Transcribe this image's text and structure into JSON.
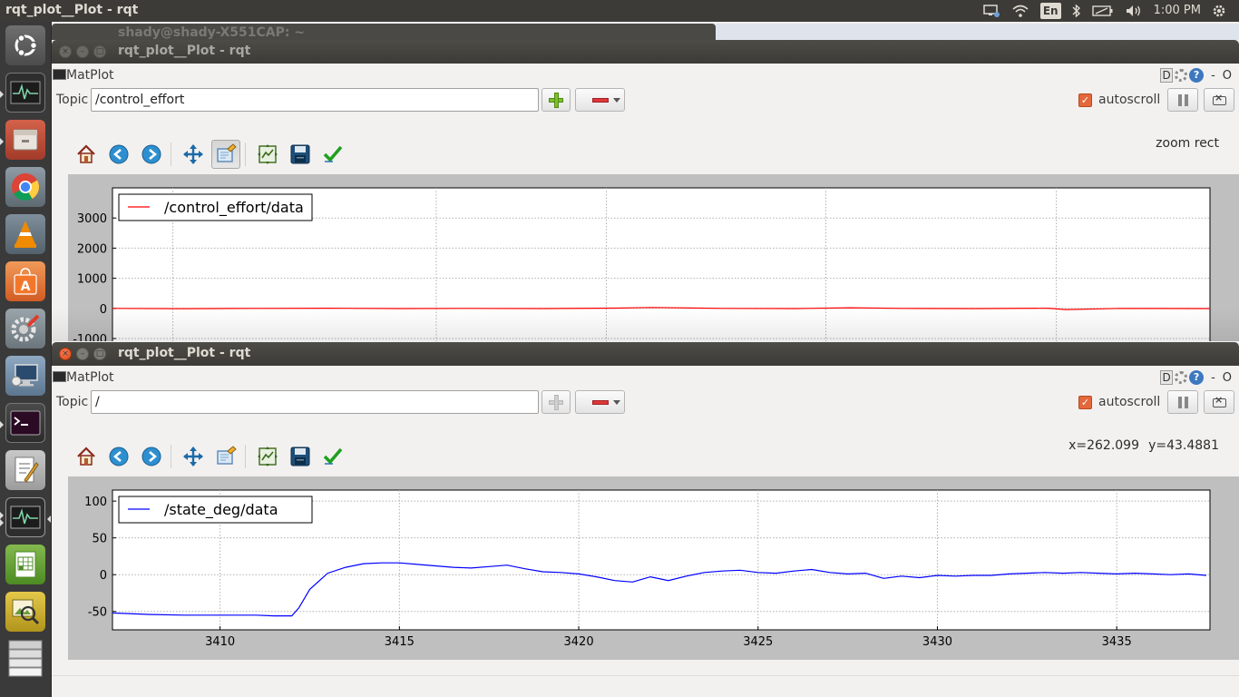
{
  "top_panel": {
    "app_title": "rqt_plot__Plot - rqt",
    "keyboard_layout": "En",
    "clock": "1:00 PM"
  },
  "background_window": {
    "title": "shady@shady-X551CAP: ~"
  },
  "window_top": {
    "title": "rqt_plot__Plot - rqt",
    "plugin_label": "MatPlot",
    "plugin_controls": {
      "d_label": "D",
      "help_label": "?",
      "minus_label": "-",
      "close_label": "O"
    },
    "topic_label": "Topic",
    "topic_value": "/control_effort",
    "add_enabled": true,
    "autoscroll_label": "autoscroll",
    "autoscroll_checked": true,
    "readout": "zoom rect",
    "zoom_pressed": true,
    "chart_data": {
      "type": "line",
      "x": [
        3407.0,
        3409.0,
        3411.0,
        3413.0,
        3415.0,
        3417.0,
        3419.0,
        3421.0,
        3422.0,
        3424.0,
        3426.0,
        3427.5,
        3429.0,
        3431.0,
        3433.0,
        3433.5,
        3435.0,
        3437.5
      ],
      "series": [
        {
          "name": "/control_effort/data",
          "color": "#ff0000",
          "values": [
            0,
            -10,
            0,
            5,
            -5,
            0,
            -5,
            10,
            30,
            0,
            -5,
            20,
            0,
            -5,
            5,
            -40,
            0,
            -5
          ]
        }
      ],
      "yticks": [
        "3000",
        "2000",
        "1000",
        "0",
        "-1000"
      ],
      "ylim": [
        -1000,
        4000
      ],
      "grid": true,
      "legend_position": "upper-left"
    }
  },
  "window_bottom": {
    "title": "rqt_plot__Plot - rqt",
    "plugin_label": "MatPlot",
    "plugin_controls": {
      "d_label": "D",
      "help_label": "?",
      "minus_label": "-",
      "close_label": "O"
    },
    "topic_label": "Topic",
    "topic_value": "/",
    "add_enabled": false,
    "autoscroll_label": "autoscroll",
    "autoscroll_checked": true,
    "readout_x": "x=262.099",
    "readout_y": "y=43.4881",
    "zoom_pressed": false,
    "chart_data": {
      "type": "line",
      "x": [
        3407.0,
        3408.0,
        3409.0,
        3410.0,
        3411.0,
        3411.5,
        3412.0,
        3412.2,
        3412.5,
        3413.0,
        3413.5,
        3414.0,
        3414.5,
        3415.0,
        3415.5,
        3416.0,
        3416.5,
        3417.0,
        3417.5,
        3418.0,
        3418.5,
        3419.0,
        3419.5,
        3420.0,
        3420.5,
        3421.0,
        3421.5,
        3422.0,
        3422.5,
        3423.0,
        3423.5,
        3424.0,
        3424.5,
        3425.0,
        3425.5,
        3426.0,
        3426.5,
        3427.0,
        3427.5,
        3428.0,
        3428.5,
        3429.0,
        3429.5,
        3430.0,
        3430.5,
        3431.0,
        3431.5,
        3432.0,
        3432.5,
        3433.0,
        3433.5,
        3434.0,
        3434.5,
        3435.0,
        3435.5,
        3436.0,
        3436.5,
        3437.0,
        3437.5
      ],
      "series": [
        {
          "name": "/state_deg/data",
          "color": "#0000ff",
          "values": [
            -52,
            -54,
            -55,
            -55,
            -55,
            -56,
            -56,
            -45,
            -20,
            2,
            10,
            15,
            16,
            16,
            14,
            12,
            10,
            9,
            11,
            13,
            8,
            4,
            3,
            1,
            -3,
            -8,
            -10,
            -3,
            -8,
            -2,
            3,
            5,
            6,
            3,
            2,
            5,
            7,
            3,
            1,
            2,
            -5,
            -2,
            -4,
            -1,
            -2,
            -1,
            -1,
            1,
            2,
            3,
            2,
            3,
            2,
            1,
            2,
            1,
            0,
            1,
            -1
          ]
        }
      ],
      "xticks": [
        "3410",
        "3415",
        "3420",
        "3425",
        "3430",
        "3435"
      ],
      "yticks": [
        "100",
        "50",
        "0",
        "-50"
      ],
      "xlim": [
        3407.0,
        3437.6
      ],
      "ylim": [
        -75,
        115
      ],
      "grid": true,
      "legend_position": "upper-left"
    }
  },
  "launcher": [
    {
      "name": "ubuntu-dash-icon"
    },
    {
      "name": "system-monitor-icon"
    },
    {
      "name": "files-icon"
    },
    {
      "name": "chrome-icon"
    },
    {
      "name": "vlc-icon"
    },
    {
      "name": "software-center-icon"
    },
    {
      "name": "system-settings-icon"
    },
    {
      "name": "remote-desktop-icon"
    },
    {
      "name": "terminal-icon"
    },
    {
      "name": "text-editor-icon"
    },
    {
      "name": "rqt-plot-icon"
    },
    {
      "name": "spreadsheet-icon"
    },
    {
      "name": "image-viewer-icon"
    },
    {
      "name": "workspace-switcher-icon"
    }
  ]
}
